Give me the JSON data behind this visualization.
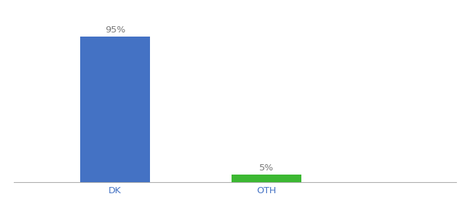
{
  "categories": [
    "DK",
    "OTH"
  ],
  "values": [
    95,
    5
  ],
  "bar_colors": [
    "#4472c4",
    "#3cb832"
  ],
  "value_labels": [
    "95%",
    "5%"
  ],
  "ylim": [
    0,
    108
  ],
  "background_color": "#ffffff",
  "label_fontsize": 9.5,
  "tick_fontsize": 9.5,
  "bar_width": 0.55,
  "label_color": "#777777",
  "tick_color": "#4472c4",
  "xlim": [
    -0.3,
    3.2
  ],
  "bar_positions": [
    0.5,
    1.7
  ]
}
